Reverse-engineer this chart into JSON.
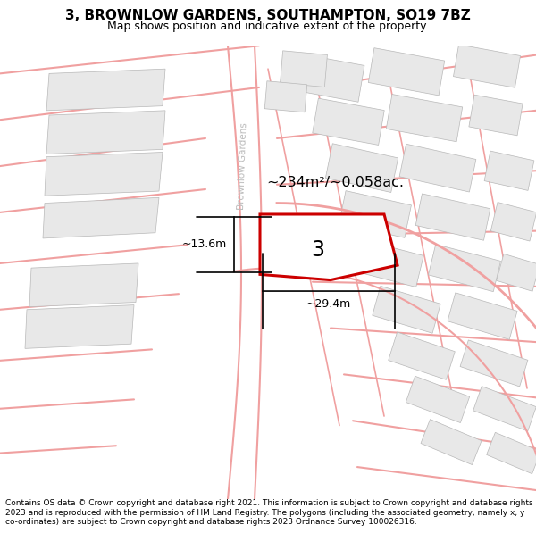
{
  "title": "3, BROWNLOW GARDENS, SOUTHAMPTON, SO19 7BZ",
  "subtitle": "Map shows position and indicative extent of the property.",
  "footer": "Contains OS data © Crown copyright and database right 2021. This information is subject to Crown copyright and database rights 2023 and is reproduced with the permission of HM Land Registry. The polygons (including the associated geometry, namely x, y co-ordinates) are subject to Crown copyright and database rights 2023 Ordnance Survey 100026316.",
  "background_color": "#ffffff",
  "road_color": "#f0a0a0",
  "road_color_light": "#f5c0c0",
  "building_color": "#e8e8e8",
  "building_edge_color": "#b8b8b8",
  "plot_color": "#ffffff",
  "plot_edge_color": "#cc0000",
  "plot_edge_width": 2.2,
  "street_label": "Brownlow Gardens",
  "street_label_color": "#bbbbbb",
  "area_label": "~234m²/~0.058ac.",
  "plot_number": "3",
  "dim_h_label": "~13.6m",
  "dim_w_label": "~29.4m",
  "title_fontsize": 11,
  "subtitle_fontsize": 9,
  "footer_fontsize": 6.5
}
